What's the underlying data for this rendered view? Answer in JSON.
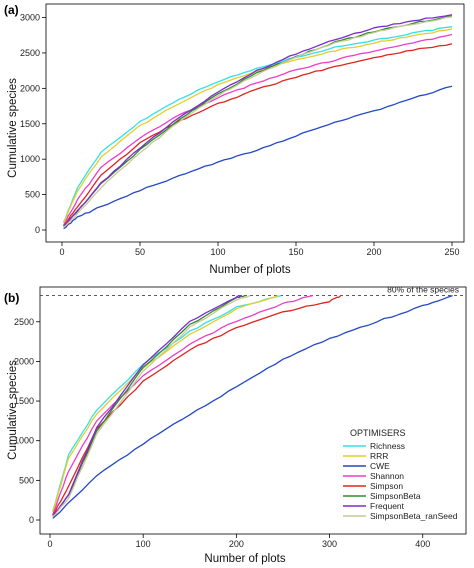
{
  "colors": {
    "Richness": "#33e0e8",
    "RRR": "#e3cf2a",
    "CWE": "#2448c4",
    "Shannon": "#ea3fc9",
    "Simpson": "#e0241e",
    "SimpsonBeta": "#2e8b2a",
    "Frequent": "#7a2bd0",
    "SimpsonBeta_ranSeed": "#c8c89a"
  },
  "chart_data": [
    {
      "panel": "(a)",
      "type": "line",
      "xlabel": "Number of plots",
      "ylabel": "Cumulative species",
      "xlim": [
        0,
        250
      ],
      "ylim": [
        0,
        3050
      ],
      "xticks": [
        0,
        50,
        100,
        150,
        200,
        250
      ],
      "yticks": [
        0,
        500,
        1000,
        1500,
        2000,
        2500,
        3000
      ],
      "grid": false,
      "x": [
        1,
        10,
        25,
        50,
        75,
        100,
        125,
        150,
        175,
        200,
        225,
        250
      ],
      "series": [
        {
          "name": "Richness",
          "values": [
            110,
            600,
            1100,
            1530,
            1850,
            2100,
            2280,
            2440,
            2580,
            2680,
            2780,
            2870
          ]
        },
        {
          "name": "RRR",
          "values": [
            100,
            560,
            1030,
            1470,
            1790,
            2050,
            2250,
            2400,
            2530,
            2640,
            2740,
            2840
          ]
        },
        {
          "name": "CWE",
          "values": [
            20,
            180,
            330,
            560,
            760,
            960,
            1130,
            1330,
            1520,
            1680,
            1860,
            2030
          ]
        },
        {
          "name": "Shannon",
          "values": [
            70,
            430,
            880,
            1300,
            1620,
            1870,
            2080,
            2260,
            2400,
            2530,
            2640,
            2760
          ]
        },
        {
          "name": "Simpson",
          "values": [
            60,
            330,
            770,
            1230,
            1540,
            1780,
            1990,
            2160,
            2310,
            2430,
            2540,
            2630
          ]
        },
        {
          "name": "SimpsonBeta",
          "values": [
            50,
            270,
            650,
            1130,
            1560,
            1920,
            2220,
            2450,
            2650,
            2800,
            2920,
            3020
          ]
        },
        {
          "name": "Frequent",
          "values": [
            50,
            270,
            660,
            1160,
            1590,
            1950,
            2250,
            2490,
            2690,
            2850,
            2960,
            3040
          ]
        },
        {
          "name": "SimpsonBeta_ranSeed",
          "values": [
            40,
            230,
            600,
            1090,
            1530,
            1900,
            2200,
            2440,
            2640,
            2790,
            2910,
            3010
          ]
        }
      ]
    },
    {
      "panel": "(b)",
      "type": "line",
      "xlabel": "Number of plots",
      "ylabel": "Cumulative species",
      "xlim": [
        0,
        440
      ],
      "ylim": [
        0,
        2850
      ],
      "xticks": [
        0,
        100,
        200,
        300,
        400
      ],
      "yticks": [
        0,
        500,
        1000,
        1500,
        2000,
        2500
      ],
      "grid": false,
      "reference_line": {
        "y": 2830,
        "label": "80% of the species"
      },
      "legend": {
        "title": "OPTIMISERS",
        "position": "bottom-right"
      },
      "series": [
        {
          "name": "Richness",
          "x": [
            3,
            20,
            50,
            100,
            150,
            200,
            248
          ],
          "values": [
            110,
            820,
            1390,
            1960,
            2380,
            2680,
            2830
          ]
        },
        {
          "name": "RRR",
          "x": [
            3,
            20,
            50,
            100,
            150,
            200,
            245
          ],
          "values": [
            100,
            780,
            1340,
            1920,
            2340,
            2660,
            2830
          ]
        },
        {
          "name": "CWE",
          "x": [
            3,
            50,
            100,
            150,
            200,
            250,
            300,
            350,
            400,
            432
          ],
          "values": [
            20,
            560,
            960,
            1330,
            1680,
            2030,
            2290,
            2500,
            2700,
            2830
          ]
        },
        {
          "name": "Shannon",
          "x": [
            3,
            20,
            50,
            100,
            150,
            200,
            250,
            282
          ],
          "values": [
            70,
            620,
            1250,
            1820,
            2220,
            2510,
            2730,
            2830
          ]
        },
        {
          "name": "Simpson",
          "x": [
            3,
            20,
            50,
            100,
            150,
            200,
            250,
            300,
            312
          ],
          "values": [
            60,
            420,
            1150,
            1750,
            2150,
            2420,
            2620,
            2760,
            2830
          ]
        },
        {
          "name": "SimpsonBeta",
          "x": [
            3,
            20,
            50,
            100,
            150,
            200,
            210
          ],
          "values": [
            50,
            310,
            1120,
            1920,
            2460,
            2800,
            2830
          ]
        },
        {
          "name": "Frequent",
          "x": [
            3,
            20,
            50,
            100,
            150,
            200,
            206
          ],
          "values": [
            50,
            320,
            1160,
            1960,
            2500,
            2810,
            2830
          ]
        },
        {
          "name": "SimpsonBeta_ranSeed",
          "x": [
            3,
            20,
            50,
            100,
            150,
            200,
            215
          ],
          "values": [
            40,
            280,
            1080,
            1880,
            2430,
            2780,
            2830
          ]
        }
      ]
    }
  ]
}
